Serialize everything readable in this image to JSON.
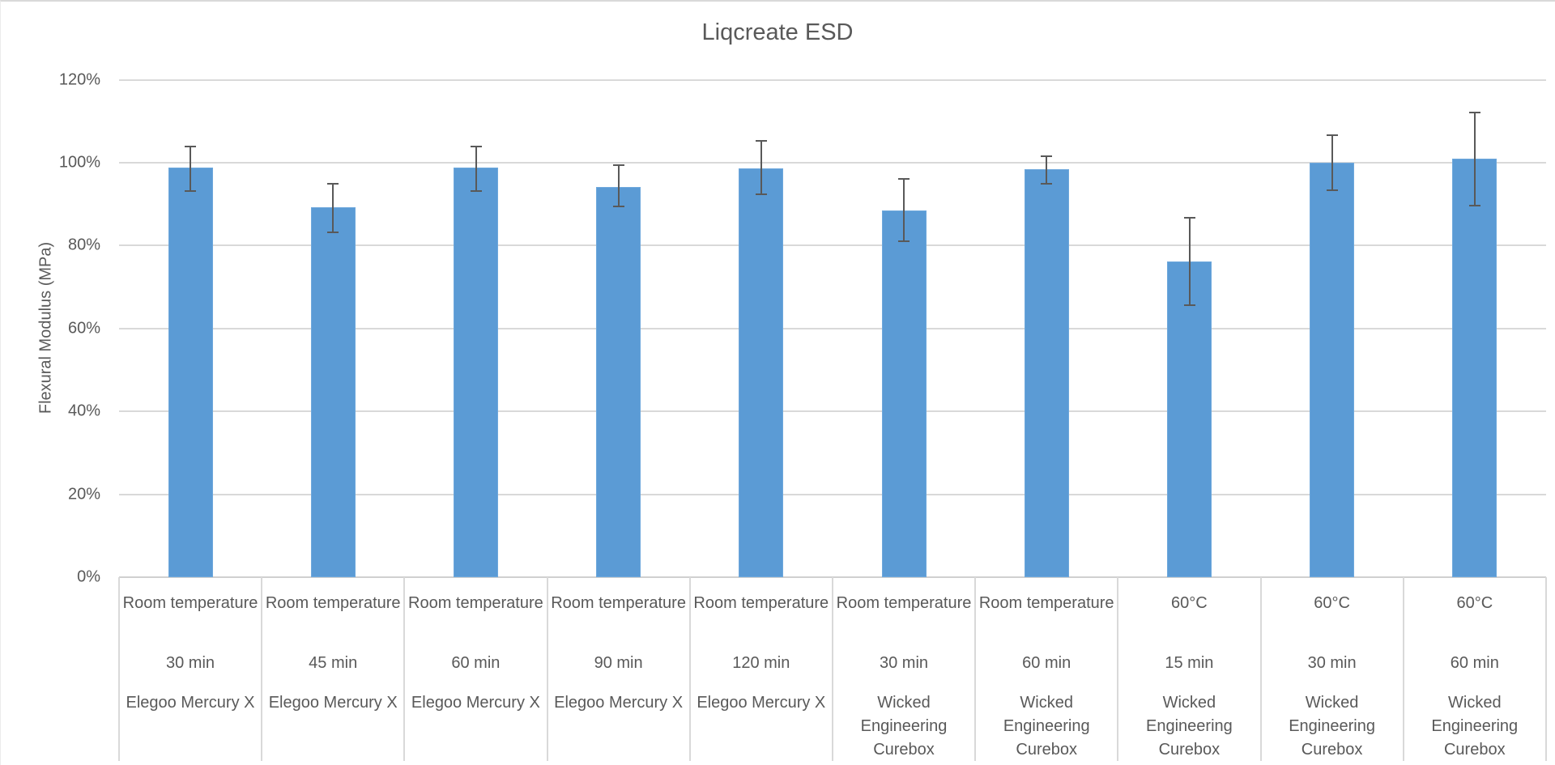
{
  "chart_data": {
    "type": "bar",
    "title": "Liqcreate ESD",
    "xlabel": "",
    "ylabel": "Flexural Modulus (MPa)",
    "ylim": [
      0,
      120
    ],
    "yticks": [
      "0%",
      "20%",
      "40%",
      "60%",
      "80%",
      "100%",
      "120%"
    ],
    "grid": true,
    "legend": null,
    "colors": {
      "bar": "#5B9BD5",
      "error_bar": "#595959",
      "grid": "#D9D9D9",
      "text": "#595959"
    },
    "categories": [
      {
        "temperature": "Room temperature",
        "time": "30 min",
        "device": "Elegoo Mercury X"
      },
      {
        "temperature": "Room temperature",
        "time": "45 min",
        "device": "Elegoo Mercury X"
      },
      {
        "temperature": "Room temperature",
        "time": "60 min",
        "device": "Elegoo Mercury X"
      },
      {
        "temperature": "Room temperature",
        "time": "90 min",
        "device": "Elegoo Mercury X"
      },
      {
        "temperature": "Room temperature",
        "time": "120 min",
        "device": "Elegoo Mercury X"
      },
      {
        "temperature": "Room temperature",
        "time": "30 min",
        "device": "Wicked Engineering Curebox"
      },
      {
        "temperature": "Room temperature",
        "time": "60 min",
        "device": "Wicked Engineering Curebox"
      },
      {
        "temperature": "60°C",
        "time": "15 min",
        "device": "Wicked Engineering Curebox"
      },
      {
        "temperature": "60°C",
        "time": "30 min",
        "device": "Wicked Engineering Curebox"
      },
      {
        "temperature": "60°C",
        "time": "60 min",
        "device": "Wicked Engineering Curebox"
      }
    ],
    "series": [
      {
        "name": "Flexural Modulus (relative)",
        "unit": "%",
        "values": [
          98.8,
          89.2,
          98.8,
          94.2,
          98.6,
          88.5,
          98.4,
          76.1,
          100.0,
          100.9
        ],
        "error_upper": [
          104.0,
          95.0,
          104.0,
          99.4,
          105.2,
          96.1,
          101.6,
          86.7,
          106.7,
          112.2
        ],
        "error_lower": [
          93.2,
          83.3,
          93.2,
          89.4,
          92.4,
          81.0,
          95.0,
          65.6,
          93.3,
          89.7
        ]
      }
    ]
  }
}
